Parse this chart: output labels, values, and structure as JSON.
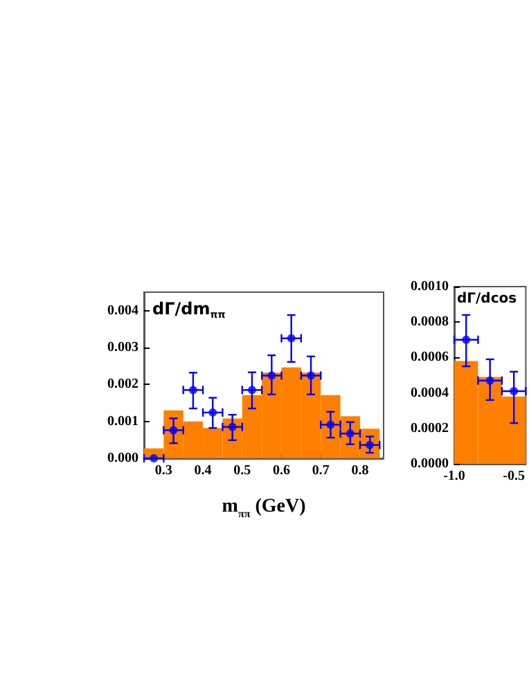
{
  "chart_data": [
    {
      "type": "histogram",
      "title": "dΓ/dm$_{ππ}$",
      "xlabel": "m$_{ππ}$ (GeV)",
      "xlim": [
        0.25,
        0.86
      ],
      "xticks": [
        {
          "value": 0.3,
          "label": "0.3"
        },
        {
          "value": 0.4,
          "label": "0.4"
        },
        {
          "value": 0.5,
          "label": "0.5"
        },
        {
          "value": 0.6,
          "label": "0.6"
        },
        {
          "value": 0.7,
          "label": "0.7"
        },
        {
          "value": 0.8,
          "label": "0.8"
        }
      ],
      "ylim": [
        0,
        0.0045
      ],
      "yticks": [
        {
          "value": 0,
          "label": "0.000"
        },
        {
          "value": 0.001,
          "label": "0.001"
        },
        {
          "value": 0.002,
          "label": "0.002"
        },
        {
          "value": 0.003,
          "label": "0.003"
        },
        {
          "value": 0.004,
          "label": "0.004"
        }
      ],
      "marker": "circle",
      "series": [
        {
          "color": "#ff8000",
          "bins": [
            0.25,
            0.3,
            0.35,
            0.4,
            0.45,
            0.5,
            0.55,
            0.6,
            0.65,
            0.7,
            0.75,
            0.8,
            0.85
          ],
          "values": [
            0.00027,
            0.0013,
            0.001,
            0.00082,
            0.00108,
            0.00171,
            0.00232,
            0.00246,
            0.00232,
            0.00171,
            0.00114,
            0.0008
          ]
        },
        {
          "type": "scatter",
          "color": "#0000ff",
          "x": [
            0.275,
            0.325,
            0.375,
            0.425,
            0.475,
            0.525,
            0.575,
            0.625,
            0.675,
            0.725,
            0.775,
            0.825
          ],
          "values": [
            0,
            0.00076,
            0.00185,
            0.00124,
            0.00085,
            0.00185,
            0.00224,
            0.00325,
            0.00224,
            0.00091,
            0.00067,
            0.00036
          ],
          "errors": [
            null,
            [
              0.00041,
              0.00108
            ],
            [
              0.00135,
              0.00232
            ],
            [
              0.00082,
              0.00164
            ],
            [
              0.00049,
              0.00118
            ],
            [
              0.00135,
              0.00233
            ],
            [
              0.00173,
              0.00279
            ],
            [
              0.00261,
              0.00388
            ],
            [
              0.00173,
              0.00276
            ],
            [
              0.00056,
              0.00126
            ],
            [
              0.00038,
              0.00098
            ],
            [
              0.00015,
              0.00059
            ]
          ],
          "xerrors": [
            0.025,
            0.025,
            0.025,
            0.025,
            0.025,
            0.025,
            0.025,
            0.025,
            0.025,
            0.025,
            0.025,
            0.025
          ]
        }
      ]
    },
    {
      "type": "histogram",
      "title": "dΓ/dcos",
      "xlim": [
        -1.0,
        -0.4
      ],
      "xticks": [
        {
          "value": -1.0,
          "label": "-1.0"
        },
        {
          "value": -0.5,
          "label": "-0.5"
        }
      ],
      "ylim": [
        0,
        0.001
      ],
      "yticks": [
        {
          "value": 0,
          "label": "0.0000"
        },
        {
          "value": 0.0002,
          "label": "0.0002"
        },
        {
          "value": 0.0004,
          "label": "0.0004"
        },
        {
          "value": 0.0006,
          "label": "0.0006"
        },
        {
          "value": 0.0008,
          "label": "0.0008"
        },
        {
          "value": 0.001,
          "label": "0.0010"
        }
      ],
      "marker": "circle",
      "series": [
        {
          "color": "#ff8000",
          "bins": [
            -1.0,
            -0.8,
            -0.6,
            -0.4
          ],
          "values": [
            0.00058,
            0.00049,
            0.00038
          ]
        },
        {
          "type": "scatter",
          "color": "#0000ff",
          "x": [
            -0.9,
            -0.7,
            -0.5
          ],
          "values": [
            0.0007,
            0.00047,
            0.00041
          ],
          "errors": [
            [
              0.00055,
              0.00084
            ],
            [
              0.00036,
              0.00059
            ],
            [
              0.00023,
              0.00052
            ]
          ],
          "xerrors": [
            0.1,
            0.1,
            0.1
          ]
        }
      ]
    }
  ]
}
